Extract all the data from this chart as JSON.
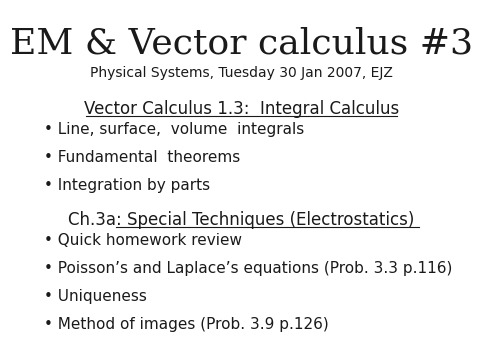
{
  "title": "EM & Vector calculus #3",
  "subtitle": "Physical Systems, Tuesday 30 Jan 2007, EJZ",
  "background_color": "#ffffff",
  "text_color": "#1a1a1a",
  "section1_heading": "Vector Calculus 1.3:  Integral Calculus",
  "section1_bullets": [
    "Line, surface,  volume  integrals",
    "Fundamental  theorems",
    "Integration by parts"
  ],
  "section2_heading": "Ch.3a: Special Techniques (Electrostatics)",
  "section2_bullets": [
    "Quick homework review",
    "Poisson’s and Laplace’s equations (Prob. 3.3 p.116)",
    "Uniqueness",
    "Method of images (Prob. 3.9 p.126)"
  ],
  "title_fontsize": 26,
  "subtitle_fontsize": 10,
  "heading_fontsize": 12,
  "bullet_fontsize": 11,
  "bullet_char": "•"
}
